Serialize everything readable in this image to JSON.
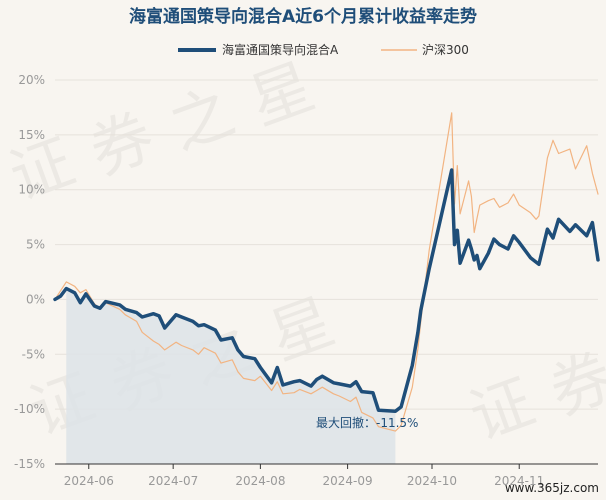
{
  "chart_data": {
    "type": "line",
    "title": "海富通国策导向混合A近6个月累计收益率走势",
    "legend": {
      "placement": "top-center"
    },
    "xlabel": "",
    "ylabel": "",
    "ylim": [
      -15,
      20
    ],
    "yticks": [
      20,
      15,
      10,
      5,
      0,
      -5,
      -10,
      -15
    ],
    "ytick_labels": [
      "20%",
      "15%",
      "10%",
      "5%",
      "0%",
      "-5%",
      "-10%",
      "-15%"
    ],
    "xlim": [
      "2024-05-20",
      "2024-11-29"
    ],
    "xticks": [
      "2024-06-01",
      "2024-07-01",
      "2024-08-01",
      "2024-09-01",
      "2024-10-01",
      "2024-11-01"
    ],
    "xtick_labels": [
      "2024-06",
      "2024-07",
      "2024-08",
      "2024-09",
      "2024-10",
      "2024-11"
    ],
    "grid": {
      "horizontal": true,
      "vertical": false
    },
    "colors": {
      "fund": "#1f4e79",
      "index": "#f2b482",
      "drawdown": "#dde3e7",
      "grid": "#e6e2db"
    },
    "series": [
      {
        "name": "海富通国策导向混合A",
        "x": [
          "2024-05-20",
          "2024-05-22",
          "2024-05-24",
          "2024-05-27",
          "2024-05-29",
          "2024-05-31",
          "2024-06-03",
          "2024-06-05",
          "2024-06-07",
          "2024-06-12",
          "2024-06-14",
          "2024-06-18",
          "2024-06-20",
          "2024-06-24",
          "2024-06-26",
          "2024-06-28",
          "2024-07-02",
          "2024-07-04",
          "2024-07-08",
          "2024-07-10",
          "2024-07-12",
          "2024-07-16",
          "2024-07-18",
          "2024-07-22",
          "2024-07-24",
          "2024-07-26",
          "2024-07-30",
          "2024-08-01",
          "2024-08-05",
          "2024-08-07",
          "2024-08-09",
          "2024-08-13",
          "2024-08-15",
          "2024-08-19",
          "2024-08-21",
          "2024-08-23",
          "2024-08-27",
          "2024-08-29",
          "2024-09-02",
          "2024-09-04",
          "2024-09-06",
          "2024-09-10",
          "2024-09-12",
          "2024-09-18",
          "2024-09-20",
          "2024-09-24",
          "2024-09-26",
          "2024-09-27",
          "2024-09-30",
          "2024-10-08",
          "2024-10-09",
          "2024-10-10",
          "2024-10-11",
          "2024-10-14",
          "2024-10-15",
          "2024-10-16",
          "2024-10-17",
          "2024-10-18",
          "2024-10-21",
          "2024-10-23",
          "2024-10-25",
          "2024-10-28",
          "2024-10-30",
          "2024-11-01",
          "2024-11-05",
          "2024-11-07",
          "2024-11-08",
          "2024-11-11",
          "2024-11-13",
          "2024-11-15",
          "2024-11-19",
          "2024-11-21",
          "2024-11-25",
          "2024-11-27",
          "2024-11-29"
        ],
        "values": [
          0,
          0.3,
          1.0,
          0.6,
          -0.3,
          0.5,
          -0.6,
          -0.8,
          -0.2,
          -0.5,
          -0.9,
          -1.2,
          -1.6,
          -1.3,
          -1.5,
          -2.6,
          -1.4,
          -1.6,
          -2.0,
          -2.4,
          -2.3,
          -2.8,
          -3.7,
          -3.5,
          -4.6,
          -5.2,
          -5.4,
          -6.2,
          -7.6,
          -6.2,
          -7.8,
          -7.5,
          -7.4,
          -7.9,
          -7.3,
          -7.0,
          -7.6,
          -7.7,
          -7.9,
          -7.5,
          -8.4,
          -8.5,
          -10.1,
          -10.2,
          -9.8,
          -6.0,
          -3.0,
          -1.0,
          2.8,
          11.8,
          5.0,
          6.3,
          3.3,
          5.4,
          4.6,
          3.6,
          4.0,
          2.8,
          4.2,
          5.5,
          5.0,
          4.6,
          5.8,
          5.2,
          3.8,
          3.4,
          3.2,
          6.4,
          5.6,
          7.3,
          6.2,
          6.8,
          5.8,
          7.0,
          3.6
        ]
      },
      {
        "name": "沪深300",
        "x": [
          "2024-05-20",
          "2024-05-22",
          "2024-05-24",
          "2024-05-27",
          "2024-05-29",
          "2024-05-31",
          "2024-06-03",
          "2024-06-05",
          "2024-06-07",
          "2024-06-12",
          "2024-06-14",
          "2024-06-18",
          "2024-06-20",
          "2024-06-24",
          "2024-06-26",
          "2024-06-28",
          "2024-07-02",
          "2024-07-04",
          "2024-07-08",
          "2024-07-10",
          "2024-07-12",
          "2024-07-16",
          "2024-07-18",
          "2024-07-22",
          "2024-07-24",
          "2024-07-26",
          "2024-07-30",
          "2024-08-01",
          "2024-08-05",
          "2024-08-07",
          "2024-08-09",
          "2024-08-13",
          "2024-08-15",
          "2024-08-19",
          "2024-08-21",
          "2024-08-23",
          "2024-08-27",
          "2024-08-29",
          "2024-09-02",
          "2024-09-04",
          "2024-09-06",
          "2024-09-10",
          "2024-09-12",
          "2024-09-18",
          "2024-09-20",
          "2024-09-24",
          "2024-09-26",
          "2024-09-27",
          "2024-09-30",
          "2024-10-08",
          "2024-10-09",
          "2024-10-10",
          "2024-10-11",
          "2024-10-14",
          "2024-10-15",
          "2024-10-16",
          "2024-10-17",
          "2024-10-18",
          "2024-10-21",
          "2024-10-23",
          "2024-10-25",
          "2024-10-28",
          "2024-10-30",
          "2024-11-01",
          "2024-11-05",
          "2024-11-07",
          "2024-11-08",
          "2024-11-11",
          "2024-11-13",
          "2024-11-15",
          "2024-11-19",
          "2024-11-21",
          "2024-11-25",
          "2024-11-27",
          "2024-11-29"
        ],
        "values": [
          0,
          0.8,
          1.6,
          1.2,
          0.6,
          0.9,
          -0.4,
          -0.8,
          -0.3,
          -0.9,
          -1.4,
          -2.0,
          -3.0,
          -3.8,
          -4.1,
          -4.6,
          -3.9,
          -4.2,
          -4.6,
          -5.0,
          -4.4,
          -4.9,
          -5.8,
          -5.5,
          -6.6,
          -7.2,
          -7.4,
          -7.0,
          -8.3,
          -7.5,
          -8.6,
          -8.5,
          -8.2,
          -8.6,
          -8.3,
          -8.0,
          -8.6,
          -8.8,
          -9.3,
          -8.9,
          -10.3,
          -10.8,
          -11.6,
          -12.0,
          -11.5,
          -8.0,
          -4.5,
          -2.0,
          4.5,
          17.0,
          8.7,
          12.2,
          7.8,
          10.8,
          9.4,
          6.1,
          7.4,
          8.6,
          9.0,
          9.2,
          8.4,
          8.8,
          9.6,
          8.6,
          7.9,
          7.3,
          7.6,
          12.9,
          14.5,
          13.3,
          13.7,
          11.9,
          14.0,
          11.5,
          9.6
        ]
      }
    ],
    "drawdown": {
      "label": "最大回撤：-11.5%",
      "value": -11.5,
      "start": "2024-05-24",
      "end": "2024-09-18"
    }
  },
  "watermark": "证券之星",
  "site_label": "www.365jz.com"
}
